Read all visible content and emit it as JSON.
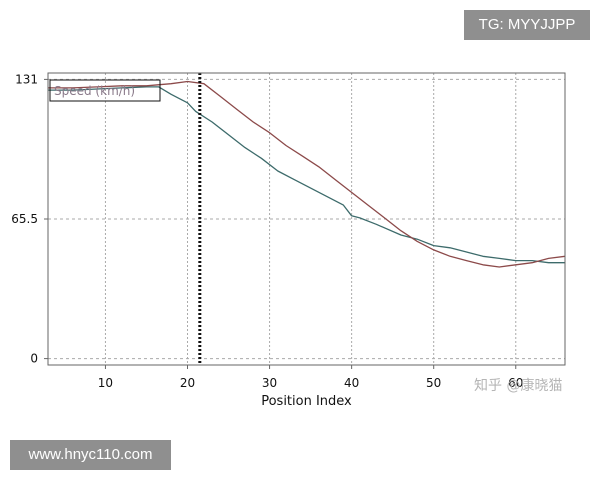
{
  "badges": {
    "top_right": "TG: MYYJJPP",
    "bottom_left": "www.hnyc110.com"
  },
  "watermark": "知乎 @康晓猫",
  "chart_data": {
    "type": "line",
    "title": "",
    "xlabel": "Position Index",
    "ylabel": "",
    "xlim": [
      3,
      66
    ],
    "ylim": [
      -3,
      134
    ],
    "x_ticks": [
      10,
      20,
      30,
      40,
      50,
      60
    ],
    "y_ticks": [
      {
        "value": 0,
        "label": "0"
      },
      {
        "value": 65.5,
        "label": "65.5"
      },
      {
        "value": 131,
        "label": "131"
      }
    ],
    "grid": true,
    "legend": {
      "position": "top-left",
      "entries": [
        "Speed (km/h)"
      ]
    },
    "cursor_x": 21.5,
    "colors": {
      "series_a": "#3d6b6b",
      "series_b": "#8c4a4a",
      "grid": "#aaaaaa",
      "cursor": "#111111",
      "frame": "#666666"
    },
    "series": [
      {
        "color": "#3d6b6b",
        "points": [
          [
            3,
            126
          ],
          [
            6,
            126
          ],
          [
            9,
            126.5
          ],
          [
            12,
            127
          ],
          [
            15,
            127.5
          ],
          [
            16.5,
            127.5
          ],
          [
            18,
            124
          ],
          [
            20,
            120
          ],
          [
            21,
            116
          ],
          [
            23,
            111
          ],
          [
            25,
            105
          ],
          [
            27,
            99
          ],
          [
            29,
            94
          ],
          [
            31,
            88
          ],
          [
            33,
            84
          ],
          [
            35,
            80
          ],
          [
            37,
            76
          ],
          [
            39,
            72
          ],
          [
            40,
            67
          ],
          [
            41,
            66
          ],
          [
            43,
            63
          ],
          [
            46,
            58
          ],
          [
            48,
            56
          ],
          [
            50,
            53
          ],
          [
            52,
            52
          ],
          [
            54,
            50
          ],
          [
            56,
            48
          ],
          [
            58,
            47
          ],
          [
            60,
            46
          ],
          [
            62,
            46
          ],
          [
            64,
            45
          ],
          [
            66,
            45
          ]
        ]
      },
      {
        "color": "#8c4a4a",
        "points": [
          [
            3,
            127
          ],
          [
            6,
            127
          ],
          [
            9,
            127.5
          ],
          [
            12,
            128
          ],
          [
            15,
            128
          ],
          [
            18,
            129
          ],
          [
            20,
            130
          ],
          [
            22,
            129
          ],
          [
            24,
            123
          ],
          [
            26,
            117
          ],
          [
            28,
            111
          ],
          [
            30,
            106
          ],
          [
            32,
            100
          ],
          [
            34,
            95
          ],
          [
            36,
            90
          ],
          [
            38,
            84
          ],
          [
            40,
            78
          ],
          [
            42,
            72
          ],
          [
            44,
            66
          ],
          [
            46,
            60
          ],
          [
            48,
            55
          ],
          [
            50,
            51
          ],
          [
            52,
            48
          ],
          [
            54,
            46
          ],
          [
            56,
            44
          ],
          [
            58,
            43
          ],
          [
            60,
            44
          ],
          [
            62,
            45
          ],
          [
            64,
            47
          ],
          [
            66,
            48
          ]
        ]
      }
    ]
  }
}
